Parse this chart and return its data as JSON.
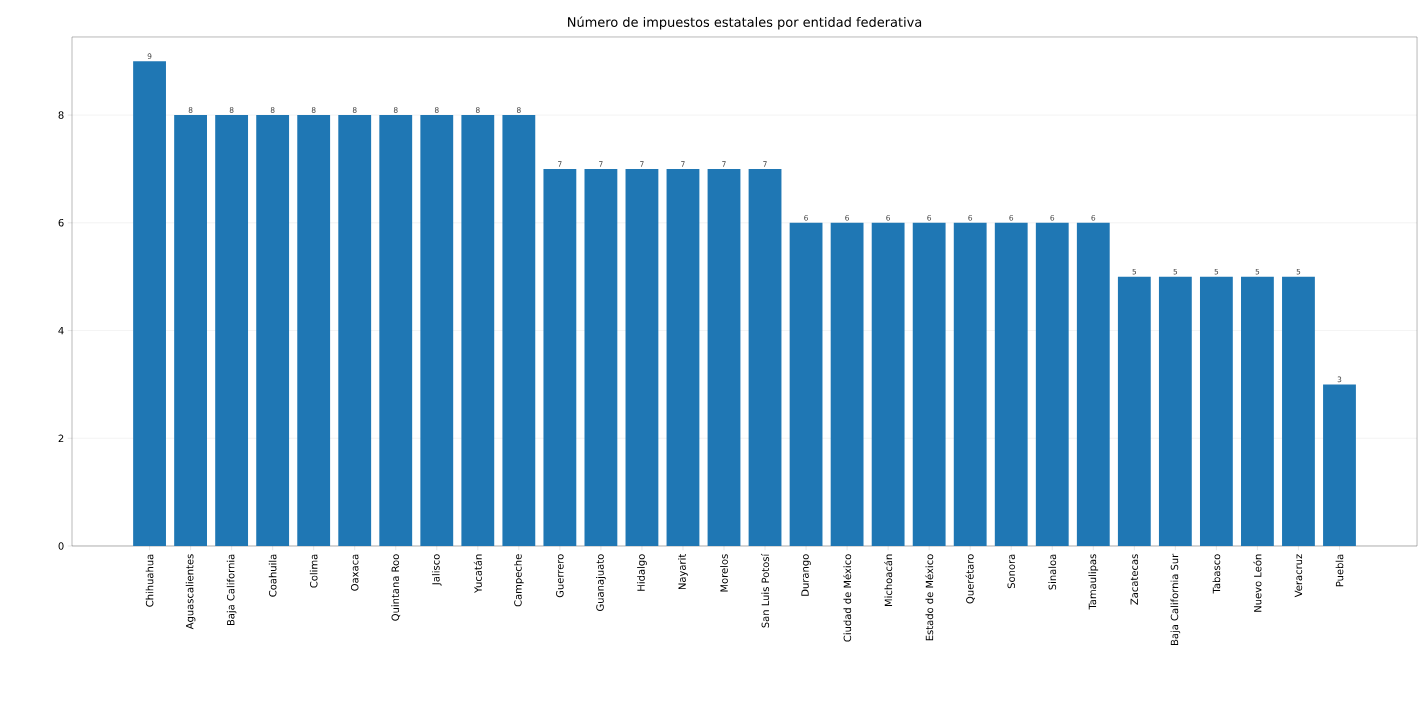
{
  "chart_data": {
    "type": "bar",
    "title": "Número de impuestos estatales por entidad federativa",
    "categories": [
      "Chihuahua",
      "Aguascalientes",
      "Baja California",
      "Coahuila",
      "Colima",
      "Oaxaca",
      "Quintana Roo",
      "Jalisco",
      "Yucatán",
      "Campeche",
      "Guerrero",
      "Guanajuato",
      "Hidalgo",
      "Nayarit",
      "Morelos",
      "San Luis Potosí",
      "Durango",
      "Ciudad de México",
      "Michoacán",
      "Estado de México",
      "Querétaro",
      "Sonora",
      "Sinaloa",
      "Tamaulipas",
      "Zacatecas",
      "Baja California Sur",
      "Tabasco",
      "Nuevo León",
      "Veracruz",
      "Puebla"
    ],
    "values": [
      9,
      8,
      8,
      8,
      8,
      8,
      8,
      8,
      8,
      8,
      7,
      7,
      7,
      7,
      7,
      7,
      6,
      6,
      6,
      6,
      6,
      6,
      6,
      6,
      5,
      5,
      5,
      5,
      5,
      3
    ],
    "color": "#1f77b4",
    "ylim": [
      0,
      9.45
    ],
    "yticks": [
      0,
      2,
      4,
      6,
      8
    ],
    "grid": "y",
    "data_labels": true
  }
}
